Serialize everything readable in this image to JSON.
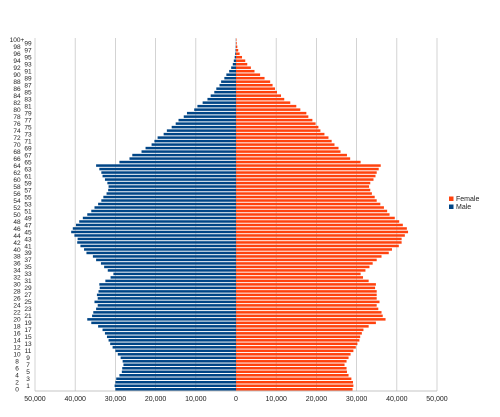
{
  "chart_data": {
    "type": "bar",
    "orientation": "horizontal",
    "layout": "population-pyramid",
    "categories": [
      "0",
      "1",
      "2",
      "3",
      "4",
      "5",
      "6",
      "7",
      "8",
      "9",
      "10",
      "11",
      "12",
      "13",
      "14",
      "15",
      "16",
      "17",
      "18",
      "19",
      "20",
      "21",
      "22",
      "23",
      "24",
      "25",
      "26",
      "27",
      "28",
      "29",
      "30",
      "31",
      "32",
      "33",
      "34",
      "35",
      "36",
      "37",
      "38",
      "39",
      "40",
      "41",
      "42",
      "43",
      "44",
      "45",
      "46",
      "47",
      "48",
      "49",
      "50",
      "51",
      "52",
      "53",
      "54",
      "55",
      "56",
      "57",
      "58",
      "59",
      "60",
      "61",
      "62",
      "63",
      "64",
      "65",
      "66",
      "67",
      "68",
      "69",
      "70",
      "71",
      "72",
      "73",
      "74",
      "75",
      "76",
      "77",
      "78",
      "79",
      "80",
      "81",
      "82",
      "83",
      "84",
      "85",
      "86",
      "87",
      "88",
      "89",
      "90",
      "91",
      "92",
      "93",
      "94",
      "95",
      "96",
      "97",
      "98",
      "99",
      "100+"
    ],
    "age_labels_shown": [
      "0",
      "1",
      "2",
      "3",
      "4",
      "5",
      "6",
      "7",
      "8",
      "9",
      "10",
      "11",
      "12",
      "13",
      "14",
      "15",
      "16",
      "17",
      "18",
      "19",
      "20",
      "21",
      "22",
      "23",
      "24",
      "25",
      "26",
      "27",
      "28",
      "29",
      "30",
      "31",
      "32",
      "33",
      "34",
      "35",
      "36",
      "37",
      "38",
      "39",
      "40",
      "41",
      "42",
      "43",
      "44",
      "45",
      "46",
      "47",
      "48",
      "49",
      "50",
      "51",
      "52",
      "53",
      "54",
      "55",
      "56",
      "57",
      "58",
      "59",
      "60",
      "61",
      "62",
      "63",
      "64",
      "65",
      "66",
      "67",
      "68",
      "69",
      "70",
      "71",
      "72",
      "73",
      "74",
      "75",
      "76",
      "77",
      "78",
      "79",
      "80",
      "81",
      "82",
      "83",
      "84",
      "85",
      "86",
      "87",
      "88",
      "89",
      "90",
      "91",
      "92",
      "93",
      "94",
      "95",
      "96",
      "97",
      "98",
      "99",
      "100+"
    ],
    "series": [
      {
        "name": "Female",
        "color": "#ff420e",
        "values": [
          29000,
          29200,
          29100,
          28700,
          28000,
          27600,
          27500,
          27000,
          27500,
          28000,
          28500,
          29200,
          29800,
          30200,
          30700,
          30900,
          31300,
          31700,
          33000,
          34800,
          37200,
          36500,
          36200,
          35400,
          35000,
          35700,
          35000,
          35000,
          35000,
          34600,
          34800,
          33000,
          31600,
          31000,
          32200,
          33200,
          34000,
          35000,
          36200,
          38000,
          38800,
          40500,
          41200,
          41200,
          42000,
          42800,
          42500,
          41500,
          40600,
          39500,
          38200,
          37600,
          36800,
          35900,
          35000,
          34500,
          33800,
          33400,
          33100,
          33400,
          34200,
          34700,
          35000,
          35500,
          36000,
          31000,
          28400,
          27600,
          26000,
          25500,
          24500,
          23800,
          23000,
          22000,
          21000,
          20500,
          19800,
          19000,
          18000,
          17500,
          16000,
          15000,
          13500,
          12000,
          11200,
          10200,
          9700,
          9100,
          8500,
          7100,
          6000,
          4600,
          3700,
          2800,
          2300,
          1500,
          900,
          550,
          330,
          180,
          120
        ]
      },
      {
        "name": "Male",
        "color": "#004586",
        "values": [
          30000,
          30200,
          30000,
          29800,
          29000,
          28400,
          28300,
          28000,
          28200,
          28700,
          29400,
          30000,
          30700,
          31300,
          31700,
          32100,
          32600,
          33200,
          34300,
          36000,
          37000,
          35800,
          35500,
          34800,
          34400,
          35200,
          34400,
          34600,
          34200,
          33900,
          34000,
          32500,
          31200,
          30500,
          31900,
          32800,
          33600,
          34800,
          35600,
          37200,
          37800,
          38700,
          39500,
          39400,
          40200,
          41000,
          40600,
          39800,
          39000,
          38100,
          37000,
          36000,
          35200,
          34300,
          33500,
          33000,
          32200,
          31800,
          31700,
          32000,
          32600,
          33200,
          33500,
          34000,
          34800,
          29000,
          26500,
          25800,
          23500,
          22500,
          21000,
          20300,
          19500,
          18000,
          17200,
          16000,
          15000,
          14300,
          13000,
          12200,
          10400,
          9600,
          8300,
          7100,
          6300,
          5400,
          4900,
          4100,
          3700,
          2900,
          2400,
          1700,
          1200,
          800,
          550,
          330,
          200,
          120,
          70,
          40,
          30
        ]
      }
    ],
    "xaxis": {
      "ticks": [
        -50000,
        -40000,
        -30000,
        -20000,
        -10000,
        0,
        10000,
        20000,
        30000,
        40000,
        50000
      ],
      "tick_labels": [
        "50,000",
        "40,000",
        "30,000",
        "20,000",
        "10,000",
        "0",
        "10,000",
        "20,000",
        "30,000",
        "40,000",
        "50,000"
      ],
      "range": [
        -50000,
        50000
      ]
    },
    "grid": "vertical lines",
    "legend": {
      "position": "right",
      "entries": [
        "Female",
        "Male"
      ]
    },
    "title": "",
    "xlabel": "",
    "ylabel": ""
  }
}
